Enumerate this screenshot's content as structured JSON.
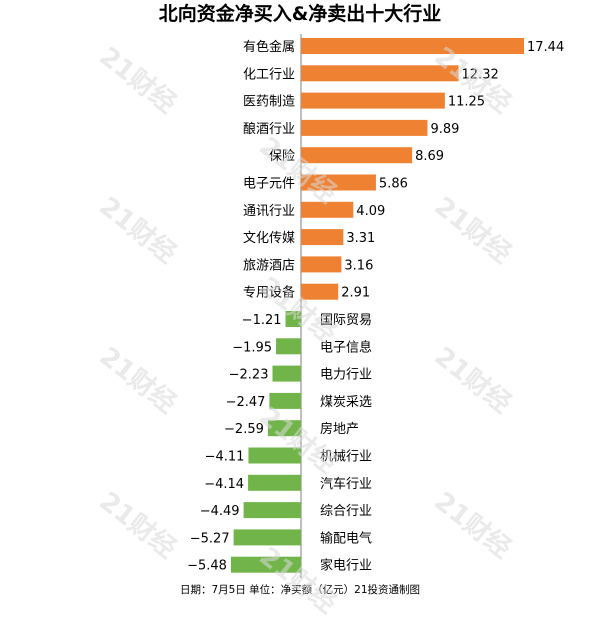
{
  "watermark_text": "21财经",
  "footer": "日期：7月5日 单位：净买额（亿元）21投资通制图",
  "colors": {
    "positive": "#ef8133",
    "negative": "#71b54a",
    "axis": "#7f7f7f",
    "watermark": "#d9d9d9"
  },
  "chart_data": {
    "type": "bar",
    "orientation": "horizontal",
    "title": "北向资金净买入&净卖出十大行业",
    "categories": [
      "有色金属",
      "化工行业",
      "医药制造",
      "酿酒行业",
      "保险",
      "电子元件",
      "通讯行业",
      "文化传媒",
      "旅游酒店",
      "专用设备",
      "国际贸易",
      "电子信息",
      "电力行业",
      "煤炭采选",
      "房地产",
      "机械行业",
      "汽车行业",
      "综合行业",
      "输配电气",
      "家电行业"
    ],
    "values": [
      17.44,
      12.32,
      11.25,
      9.89,
      8.69,
      5.86,
      4.09,
      3.31,
      3.16,
      2.91,
      -1.21,
      -1.95,
      -2.23,
      -2.47,
      -2.59,
      -4.11,
      -4.14,
      -4.49,
      -5.27,
      -5.48
    ],
    "value_labels": [
      "17.44",
      "12.32",
      "11.25",
      "9.89",
      "8.69",
      "5.86",
      "4.09",
      "3.31",
      "3.16",
      "2.91",
      "−1.21",
      "−1.95",
      "−2.23",
      "−2.47",
      "−2.59",
      "−4.11",
      "−4.14",
      "−4.49",
      "−5.27",
      "−5.48"
    ],
    "xlabel": "",
    "ylabel": "",
    "xlim": [
      -5.48,
      17.44
    ],
    "grid": false,
    "legend": "none"
  }
}
